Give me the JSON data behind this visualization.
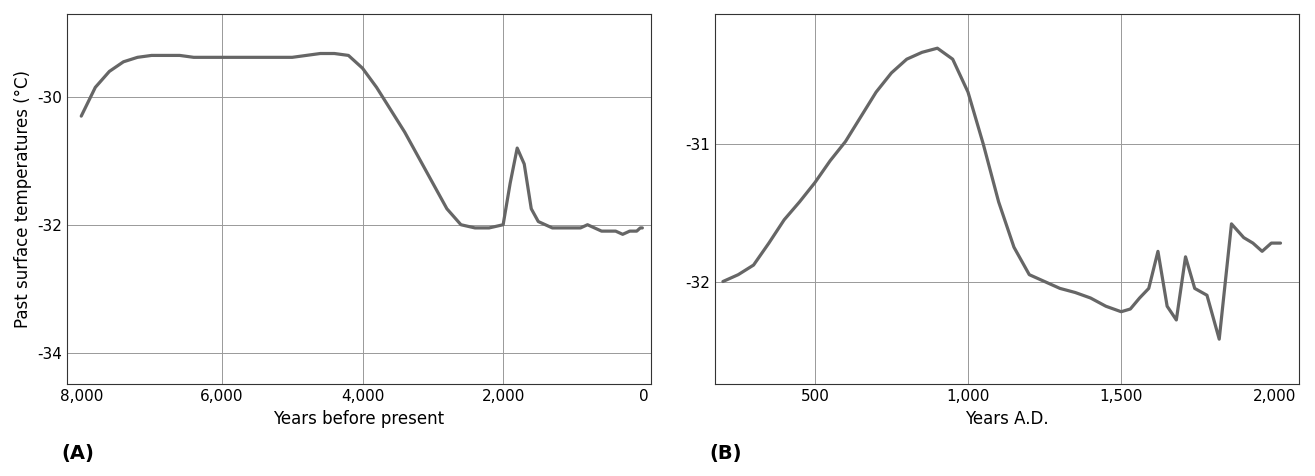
{
  "chart_A": {
    "x": [
      8000,
      7800,
      7600,
      7400,
      7200,
      7000,
      6800,
      6600,
      6400,
      6200,
      6000,
      5800,
      5600,
      5400,
      5200,
      5000,
      4800,
      4600,
      4400,
      4200,
      4000,
      3800,
      3600,
      3400,
      3200,
      3000,
      2800,
      2600,
      2400,
      2200,
      2000,
      1900,
      1800,
      1700,
      1600,
      1500,
      1400,
      1300,
      1200,
      1100,
      1000,
      900,
      800,
      700,
      600,
      500,
      400,
      300,
      200,
      100,
      50,
      20
    ],
    "y": [
      -30.3,
      -29.85,
      -29.6,
      -29.45,
      -29.38,
      -29.35,
      -29.35,
      -29.35,
      -29.38,
      -29.38,
      -29.38,
      -29.38,
      -29.38,
      -29.38,
      -29.38,
      -29.38,
      -29.35,
      -29.32,
      -29.32,
      -29.35,
      -29.55,
      -29.85,
      -30.2,
      -30.55,
      -30.95,
      -31.35,
      -31.75,
      -32.0,
      -32.05,
      -32.05,
      -32.0,
      -31.35,
      -30.8,
      -31.05,
      -31.75,
      -31.95,
      -32.0,
      -32.05,
      -32.05,
      -32.05,
      -32.05,
      -32.05,
      -32.0,
      -32.05,
      -32.1,
      -32.1,
      -32.1,
      -32.15,
      -32.1,
      -32.1,
      -32.05,
      -32.05
    ],
    "xlabel": "Years before present",
    "ylabel": "Past surface temperatures (°C)",
    "label": "(A)",
    "xlim": [
      8200,
      -100
    ],
    "ylim": [
      -34.5,
      -28.7
    ],
    "xticks": [
      8000,
      6000,
      4000,
      2000,
      0
    ],
    "yticks": [
      -34,
      -32,
      -30
    ],
    "grid_color": "#999999",
    "line_color": "#666666"
  },
  "chart_B": {
    "x": [
      200,
      250,
      300,
      350,
      400,
      450,
      500,
      550,
      600,
      650,
      700,
      750,
      800,
      850,
      900,
      950,
      1000,
      1050,
      1100,
      1150,
      1200,
      1300,
      1350,
      1400,
      1450,
      1500,
      1530,
      1560,
      1590,
      1620,
      1650,
      1680,
      1710,
      1740,
      1780,
      1820,
      1860,
      1900,
      1930,
      1960,
      1990,
      2020
    ],
    "y": [
      -32.0,
      -31.95,
      -31.88,
      -31.72,
      -31.55,
      -31.42,
      -31.28,
      -31.12,
      -30.98,
      -30.8,
      -30.62,
      -30.48,
      -30.38,
      -30.33,
      -30.3,
      -30.38,
      -30.62,
      -31.0,
      -31.42,
      -31.75,
      -31.95,
      -32.05,
      -32.08,
      -32.12,
      -32.18,
      -32.22,
      -32.2,
      -32.12,
      -32.05,
      -31.78,
      -32.18,
      -32.28,
      -31.82,
      -32.05,
      -32.1,
      -32.42,
      -31.58,
      -31.68,
      -31.72,
      -31.78,
      -31.72,
      -31.72
    ],
    "xlabel": "Years A.D.",
    "label": "(B)",
    "xlim": [
      175,
      2080
    ],
    "ylim": [
      -32.75,
      -30.05
    ],
    "xticks": [
      500,
      1000,
      1500,
      2000
    ],
    "yticks": [
      -32,
      -31
    ],
    "grid_color": "#999999",
    "line_color": "#666666"
  },
  "line_width": 2.3,
  "bg_color": "#ffffff",
  "label_fontsize": 12,
  "tick_fontsize": 11,
  "bold_label_fontsize": 14
}
